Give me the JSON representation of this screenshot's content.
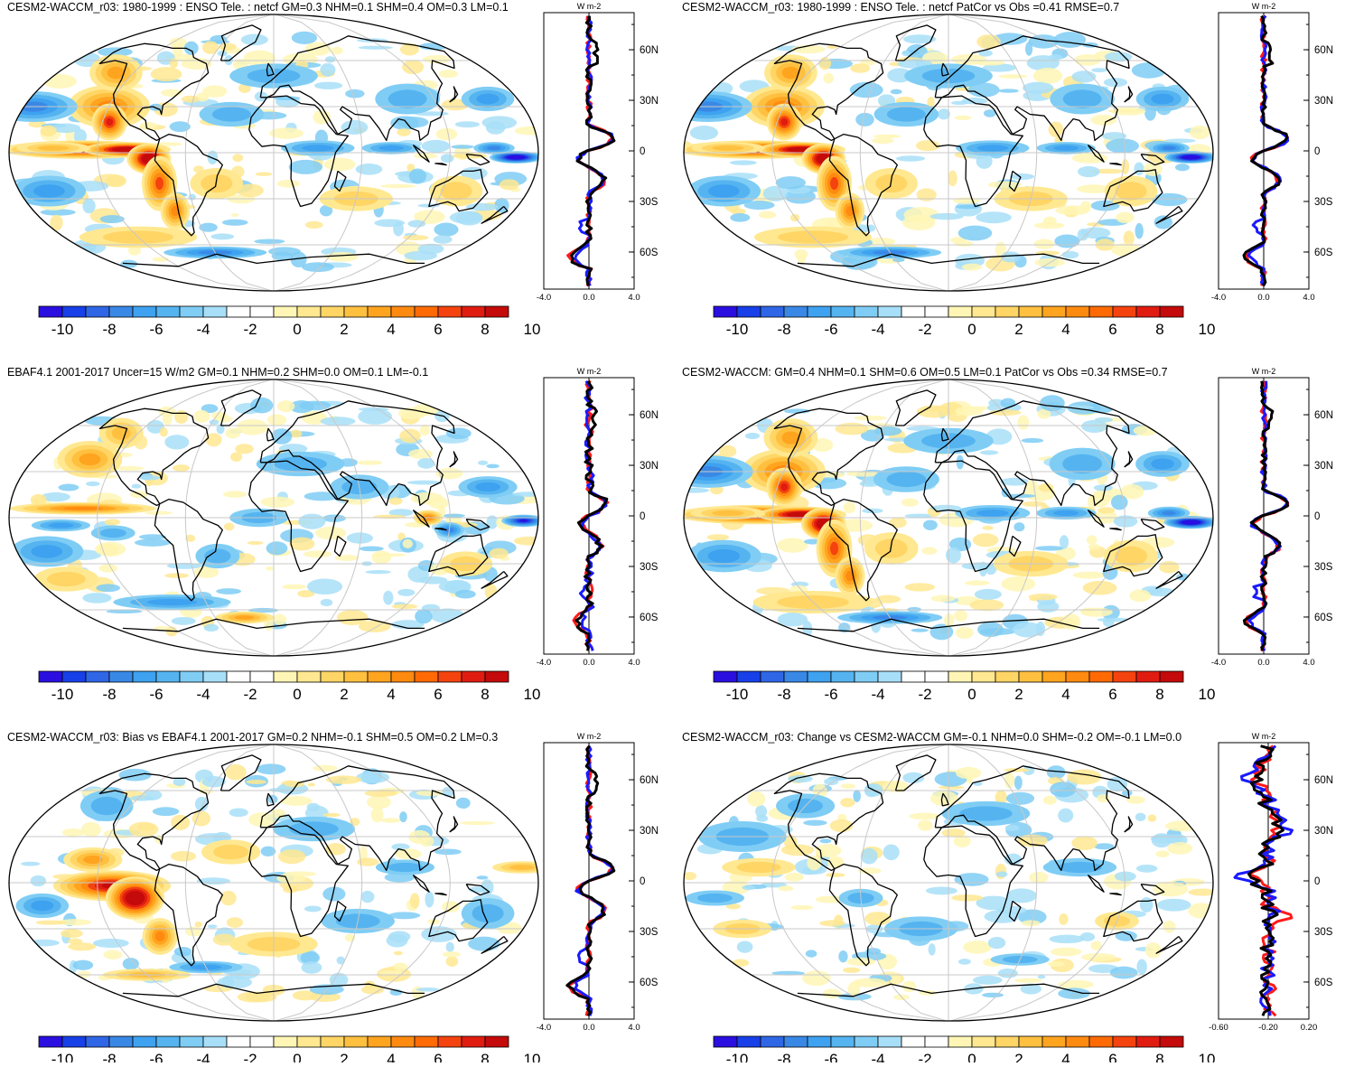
{
  "figure": {
    "colorbar_labels": [
      "-10",
      "-8",
      "-6",
      "-4",
      "-2",
      "0",
      "2",
      "4",
      "6",
      "8",
      "10"
    ],
    "colorbar_colors": [
      "#2a0fe0",
      "#1840e8",
      "#2f66e6",
      "#3a88e6",
      "#3ea2f0",
      "#55b4f0",
      "#7fcdf5",
      "#a8dff8",
      "#ffffff",
      "#ffffff",
      "#fff6b5",
      "#ffe890",
      "#ffd565",
      "#ffc040",
      "#ffa41f",
      "#ff8a10",
      "#ff6a05",
      "#f4430f",
      "#e01c10",
      "#c40a0a"
    ],
    "lat_labels": [
      "60N",
      "30N",
      "0",
      "30S",
      "60S"
    ],
    "side_plot_unit": "W m-2",
    "line_colors": {
      "black": "#000000",
      "red": "#ff1a1a",
      "blue": "#1a1aff"
    }
  },
  "panels": [
    {
      "title": "CESM2-WACCM_r03: 1980-1999 : ENSO Tele. : netcf GM=0.3 NHM=0.1 SHM=0.4 OM=0.3 LM=0.1",
      "xticks": [
        "-4.0",
        "0.0",
        "4.0"
      ],
      "pattern": "model"
    },
    {
      "title": "CESM2-WACCM_r03: 1980-1999 : ENSO Tele. : netcf PatCor vs Obs =0.41 RMSE=0.7",
      "xticks": [
        "-4.0",
        "0.0",
        "4.0"
      ],
      "pattern": "model"
    },
    {
      "title": "EBAF4.1 2001-2017 Uncer=15 W/m2 GM=0.1 NHM=0.2 SHM=0.0 OM=0.1 LM=-0.1",
      "xticks": [
        "-4.0",
        "0.0",
        "4.0"
      ],
      "pattern": "obs"
    },
    {
      "title": "CESM2-WACCM: GM=0.4 NHM=0.1 SHM=0.6 OM=0.5 LM=0.1 PatCor vs Obs =0.34 RMSE=0.7",
      "xticks": [
        "-4.0",
        "0.0",
        "4.0"
      ],
      "pattern": "model2"
    },
    {
      "title": "CESM2-WACCM_r03: Bias vs EBAF4.1 2001-2017 GM=0.2 NHM=-0.1 SHM=0.5 OM=0.2 LM=0.3",
      "xticks": [
        "-4.0",
        "0.0",
        "4.0"
      ],
      "pattern": "bias"
    },
    {
      "title": "CESM2-WACCM_r03: Change vs CESM2-WACCM GM=-0.1 NHM=0.0 SHM=-0.2 OM=-0.1 LM=0.0",
      "xticks": [
        "-0.60",
        "-0.20",
        "0.20"
      ],
      "pattern": "change"
    }
  ]
}
